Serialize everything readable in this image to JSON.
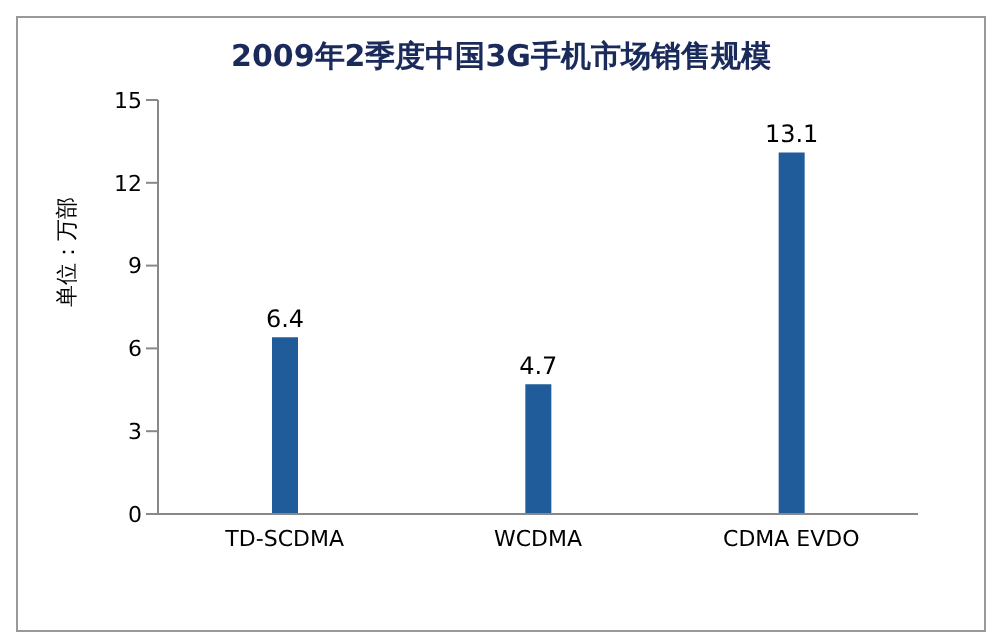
{
  "chart_data": {
    "type": "bar",
    "title": "2009年2季度中国3G手机市场销售规模",
    "ylabel": "单位：万部",
    "categories": [
      "TD-SCDMA",
      "WCDMA",
      "CDMA EVDO"
    ],
    "values": [
      6.4,
      4.7,
      13.1
    ],
    "color": "#1f5c99",
    "ylim": [
      0,
      15
    ],
    "yticks": [
      0,
      3,
      6,
      9,
      12,
      15
    ],
    "data_labels": true
  }
}
